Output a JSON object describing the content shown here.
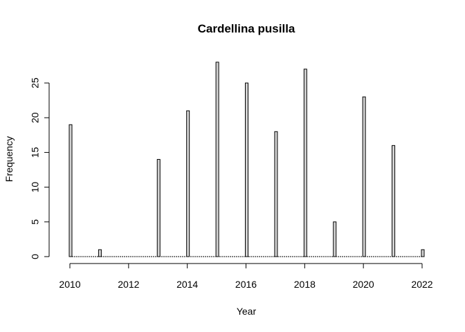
{
  "chart_data": {
    "type": "bar",
    "title": "Cardellina pusilla",
    "xlabel": "Year",
    "ylabel": "Frequency",
    "x": [
      2010,
      2011,
      2012,
      2013,
      2014,
      2015,
      2016,
      2017,
      2018,
      2019,
      2020,
      2021,
      2022
    ],
    "values": [
      19,
      1,
      0,
      14,
      21,
      28,
      25,
      18,
      27,
      5,
      23,
      16,
      1
    ],
    "xlim": [
      2010,
      2022
    ],
    "ylim": [
      0,
      28
    ],
    "x_ticks": [
      2010,
      2012,
      2014,
      2016,
      2018,
      2020,
      2022
    ],
    "y_ticks": [
      0,
      5,
      10,
      15,
      20,
      25
    ],
    "grid": false,
    "bar_fill": "#d3d3d3",
    "bar_stroke": "#000000"
  }
}
